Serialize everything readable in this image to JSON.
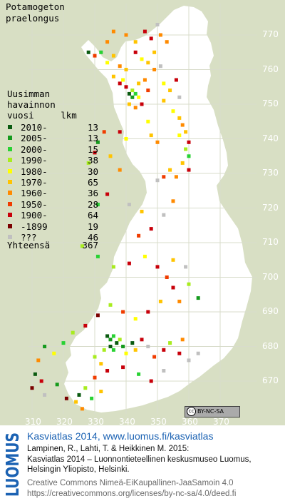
{
  "title": {
    "line1": "Potamogeton",
    "line2": "praelongus"
  },
  "legend": {
    "heading": [
      "Uusimman",
      "havainnon",
      "vuosi     lkm"
    ],
    "rows": [
      {
        "label": "2010-",
        "count": "13",
        "color": "#0a5a10"
      },
      {
        "label": "2005-",
        "count": "13",
        "color": "#159a1d"
      },
      {
        "label": "2000-",
        "count": "15",
        "color": "#28d233"
      },
      {
        "label": "1990-",
        "count": "38",
        "color": "#a8ec1f"
      },
      {
        "label": "1980-",
        "count": "30",
        "color": "#ffff00"
      },
      {
        "label": "1970-",
        "count": "65",
        "color": "#ffc400"
      },
      {
        "label": "1960-",
        "count": "36",
        "color": "#ff8a00"
      },
      {
        "label": "1950-",
        "count": "28",
        "color": "#f03c00"
      },
      {
        "label": "1900-",
        "count": "64",
        "color": "#c8000a"
      },
      {
        "label": "-1899",
        "count": "19",
        "color": "#7a0000"
      },
      {
        "label": "???",
        "count": "46",
        "color": "#c0c0c0"
      }
    ],
    "total_label": "Yhteensä",
    "total_count": "367"
  },
  "axes": {
    "y_labels": [
      "770",
      "760",
      "750",
      "740",
      "730",
      "720",
      "710",
      "700",
      "690",
      "680",
      "670"
    ],
    "x_labels": [
      "310",
      "320",
      "330",
      "340",
      "350",
      "360",
      "370"
    ]
  },
  "license_badge": {
    "cc": "cc",
    "text": "BY-NC-SA"
  },
  "footer": {
    "logo_text": "LUOMUS",
    "line1": "Kasviatlas 2014, www.luomus.fi/kasviatlas",
    "line2": "Lampinen, R., Lahti, T. & Heikkinen M. 2015:",
    "line3": "Kasviatlas 2014 – Luonnontieteellinen keskusmuseo Luomus,",
    "line4": "Helsingin Yliopisto, Helsinki.",
    "line5": "Creative Commons Nimeä-EiKaupallinen-JaaSamoin 4.0",
    "line6": "https://creativecommons.org/licenses/by-nc-sa/4.0/deed.fi"
  },
  "colors": {
    "background": "#d8dfc4",
    "land": "#ffffff",
    "grid": "#d8dccb",
    "footer_blue": "#1b62b3"
  },
  "chart_data": {
    "type": "scatter",
    "grid_cell_km": 10,
    "observations": [
      {
        "x": 334,
        "y": 768,
        "class": "1960-"
      },
      {
        "x": 336,
        "y": 771,
        "class": "1960-"
      },
      {
        "x": 340,
        "y": 770,
        "class": "1960-"
      },
      {
        "x": 343,
        "y": 768,
        "class": "1970-"
      },
      {
        "x": 346,
        "y": 771,
        "class": "1900-"
      },
      {
        "x": 348,
        "y": 769,
        "class": "1900-"
      },
      {
        "x": 349,
        "y": 765,
        "class": "1970-"
      },
      {
        "x": 350,
        "y": 773,
        "class": "???"
      },
      {
        "x": 351,
        "y": 770,
        "class": "1960-"
      },
      {
        "x": 353,
        "y": 768,
        "class": "1960-"
      },
      {
        "x": 343,
        "y": 765,
        "class": "1900-"
      },
      {
        "x": 345,
        "y": 763,
        "class": "1980-"
      },
      {
        "x": 347,
        "y": 762,
        "class": "1970-"
      },
      {
        "x": 349,
        "y": 760,
        "class": "1960-"
      },
      {
        "x": 351,
        "y": 761,
        "class": "???"
      },
      {
        "x": 328,
        "y": 765,
        "class": "2010-"
      },
      {
        "x": 330,
        "y": 764,
        "class": "1950-"
      },
      {
        "x": 332,
        "y": 765,
        "class": "2000-"
      },
      {
        "x": 334,
        "y": 762,
        "class": "1980-"
      },
      {
        "x": 336,
        "y": 764,
        "class": "1970-"
      },
      {
        "x": 338,
        "y": 761,
        "class": "1960-"
      },
      {
        "x": 340,
        "y": 760,
        "class": "1970-"
      },
      {
        "x": 336,
        "y": 758,
        "class": "1970-"
      },
      {
        "x": 338,
        "y": 756,
        "class": "1900-"
      },
      {
        "x": 339,
        "y": 757,
        "class": "1980-"
      },
      {
        "x": 340,
        "y": 755,
        "class": "1900-"
      },
      {
        "x": 341,
        "y": 753,
        "class": "2010-"
      },
      {
        "x": 342,
        "y": 752,
        "class": "2005-"
      },
      {
        "x": 343,
        "y": 753,
        "class": "2000-"
      },
      {
        "x": 342,
        "y": 754,
        "class": "1990-"
      },
      {
        "x": 344,
        "y": 752,
        "class": "1980-"
      },
      {
        "x": 341,
        "y": 750,
        "class": "1970-"
      },
      {
        "x": 343,
        "y": 749,
        "class": "1960-"
      },
      {
        "x": 345,
        "y": 750,
        "class": "1900-"
      },
      {
        "x": 344,
        "y": 756,
        "class": "1970-"
      },
      {
        "x": 346,
        "y": 757,
        "class": "1960-"
      },
      {
        "x": 347,
        "y": 754,
        "class": "1950-"
      },
      {
        "x": 352,
        "y": 756,
        "class": "1980-"
      },
      {
        "x": 354,
        "y": 754,
        "class": "1970-"
      },
      {
        "x": 356,
        "y": 757,
        "class": "1900-"
      },
      {
        "x": 357,
        "y": 752,
        "class": "???"
      },
      {
        "x": 352,
        "y": 751,
        "class": "1970-"
      },
      {
        "x": 355,
        "y": 748,
        "class": "1980-"
      },
      {
        "x": 357,
        "y": 746,
        "class": "1970-"
      },
      {
        "x": 358,
        "y": 744,
        "class": "1960-"
      },
      {
        "x": 359,
        "y": 742,
        "class": "1970-"
      },
      {
        "x": 357,
        "y": 741,
        "class": "1980-"
      },
      {
        "x": 360,
        "y": 739,
        "class": "1900-"
      },
      {
        "x": 359,
        "y": 737,
        "class": "1990-"
      },
      {
        "x": 360,
        "y": 735,
        "class": "2000-"
      },
      {
        "x": 358,
        "y": 733,
        "class": "1970-"
      },
      {
        "x": 360,
        "y": 731,
        "class": "1900-"
      },
      {
        "x": 356,
        "y": 729,
        "class": "1960-"
      },
      {
        "x": 354,
        "y": 731,
        "class": "1970-"
      },
      {
        "x": 352,
        "y": 729,
        "class": "1950-"
      },
      {
        "x": 350,
        "y": 728,
        "class": "???"
      },
      {
        "x": 348,
        "y": 741,
        "class": "1970-"
      },
      {
        "x": 350,
        "y": 739,
        "class": "1960-"
      },
      {
        "x": 347,
        "y": 745,
        "class": "1980-"
      },
      {
        "x": 338,
        "y": 742,
        "class": "1900-"
      },
      {
        "x": 340,
        "y": 740,
        "class": "1980-"
      },
      {
        "x": 333,
        "y": 742,
        "class": "1950-"
      },
      {
        "x": 331,
        "y": 739,
        "class": "2005-"
      },
      {
        "x": 330,
        "y": 736,
        "class": "1900-"
      },
      {
        "x": 328,
        "y": 733,
        "class": "1990-"
      },
      {
        "x": 335,
        "y": 735,
        "class": "1970-"
      },
      {
        "x": 338,
        "y": 731,
        "class": "1960-"
      },
      {
        "x": 334,
        "y": 724,
        "class": "1900-"
      },
      {
        "x": 331,
        "y": 721,
        "class": "2000-"
      },
      {
        "x": 341,
        "y": 721,
        "class": "???"
      },
      {
        "x": 345,
        "y": 719,
        "class": "1970-"
      },
      {
        "x": 348,
        "y": 714,
        "class": "1900-"
      },
      {
        "x": 352,
        "y": 718,
        "class": "???"
      },
      {
        "x": 355,
        "y": 722,
        "class": "1960-"
      },
      {
        "x": 344,
        "y": 712,
        "class": "1950-"
      },
      {
        "x": 326,
        "y": 709,
        "class": "1990-"
      },
      {
        "x": 331,
        "y": 706,
        "class": "2000-"
      },
      {
        "x": 336,
        "y": 703,
        "class": "1990-"
      },
      {
        "x": 341,
        "y": 704,
        "class": "1900-"
      },
      {
        "x": 346,
        "y": 706,
        "class": "1980-"
      },
      {
        "x": 350,
        "y": 703,
        "class": "1900-"
      },
      {
        "x": 355,
        "y": 705,
        "class": "1970-"
      },
      {
        "x": 359,
        "y": 703,
        "class": "???"
      },
      {
        "x": 353,
        "y": 700,
        "class": "1950-"
      },
      {
        "x": 355,
        "y": 697,
        "class": "1900-"
      },
      {
        "x": 360,
        "y": 698,
        "class": "1990-"
      },
      {
        "x": 363,
        "y": 694,
        "class": "2005-"
      },
      {
        "x": 357,
        "y": 693,
        "class": "1960-"
      },
      {
        "x": 351,
        "y": 693,
        "class": "1970-"
      },
      {
        "x": 347,
        "y": 690,
        "class": "1900-"
      },
      {
        "x": 343,
        "y": 688,
        "class": "1980-"
      },
      {
        "x": 339,
        "y": 690,
        "class": "1950-"
      },
      {
        "x": 335,
        "y": 692,
        "class": "1990-"
      },
      {
        "x": 331,
        "y": 689,
        "class": "-1899"
      },
      {
        "x": 327,
        "y": 686,
        "class": "1900-"
      },
      {
        "x": 323,
        "y": 684,
        "class": "1990-"
      },
      {
        "x": 320,
        "y": 681,
        "class": "2000-"
      },
      {
        "x": 317,
        "y": 678,
        "class": "1980-"
      },
      {
        "x": 314,
        "y": 680,
        "class": "2005-"
      },
      {
        "x": 312,
        "y": 676,
        "class": "1960-"
      },
      {
        "x": 311,
        "y": 672,
        "class": "2010-"
      },
      {
        "x": 313,
        "y": 670,
        "class": "1900-"
      },
      {
        "x": 310,
        "y": 668,
        "class": "-1899"
      },
      {
        "x": 334,
        "y": 683,
        "class": "2010-"
      },
      {
        "x": 335,
        "y": 682,
        "class": "2005-"
      },
      {
        "x": 336,
        "y": 683,
        "class": "2000-"
      },
      {
        "x": 337,
        "y": 681,
        "class": "2010-"
      },
      {
        "x": 338,
        "y": 682,
        "class": "1990-"
      },
      {
        "x": 335,
        "y": 680,
        "class": "2010-"
      },
      {
        "x": 336,
        "y": 679,
        "class": "2000-"
      },
      {
        "x": 339,
        "y": 680,
        "class": "2005-"
      },
      {
        "x": 333,
        "y": 679,
        "class": "1990-"
      },
      {
        "x": 340,
        "y": 678,
        "class": "1980-"
      },
      {
        "x": 342,
        "y": 681,
        "class": "2010-"
      },
      {
        "x": 343,
        "y": 679,
        "class": "1970-"
      },
      {
        "x": 345,
        "y": 682,
        "class": "1900-"
      },
      {
        "x": 347,
        "y": 680,
        "class": "???"
      },
      {
        "x": 349,
        "y": 677,
        "class": "1950-"
      },
      {
        "x": 352,
        "y": 679,
        "class": "1900-"
      },
      {
        "x": 354,
        "y": 681,
        "class": "1990-"
      },
      {
        "x": 357,
        "y": 678,
        "class": "1900-"
      },
      {
        "x": 360,
        "y": 676,
        "class": "???"
      },
      {
        "x": 363,
        "y": 678,
        "class": "???"
      },
      {
        "x": 358,
        "y": 682,
        "class": "1960-"
      },
      {
        "x": 330,
        "y": 677,
        "class": "1990-"
      },
      {
        "x": 332,
        "y": 675,
        "class": "1970-"
      },
      {
        "x": 334,
        "y": 673,
        "class": "1900-"
      },
      {
        "x": 330,
        "y": 671,
        "class": "1950-"
      },
      {
        "x": 327,
        "y": 668,
        "class": "1990-"
      },
      {
        "x": 325,
        "y": 666,
        "class": "2010-"
      },
      {
        "x": 324,
        "y": 664,
        "class": "1970-"
      },
      {
        "x": 321,
        "y": 665,
        "class": "-1899"
      },
      {
        "x": 329,
        "y": 665,
        "class": "2000-"
      },
      {
        "x": 326,
        "y": 662,
        "class": "1960-"
      },
      {
        "x": 332,
        "y": 667,
        "class": "1970-"
      },
      {
        "x": 318,
        "y": 669,
        "class": "2005-"
      },
      {
        "x": 314,
        "y": 666,
        "class": "???"
      },
      {
        "x": 339,
        "y": 674,
        "class": "1900-"
      },
      {
        "x": 344,
        "y": 672,
        "class": "2000-"
      },
      {
        "x": 348,
        "y": 670,
        "class": "1900-"
      },
      {
        "x": 352,
        "y": 673,
        "class": "???"
      }
    ]
  }
}
